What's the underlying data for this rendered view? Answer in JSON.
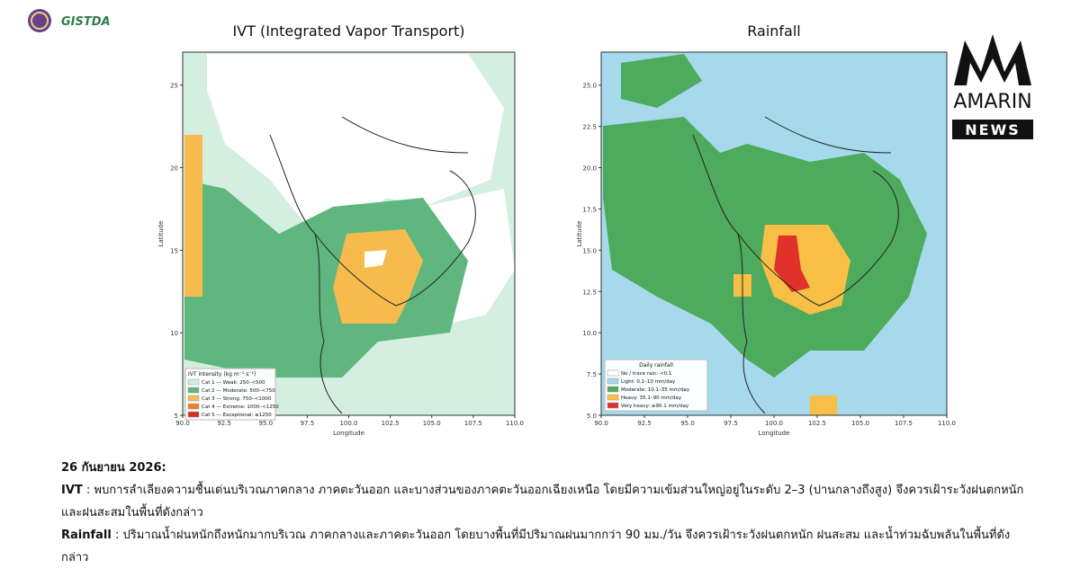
{
  "header": {
    "logo_text": "GISTDA"
  },
  "brand": {
    "name": "AMARIN",
    "tag": "NEWS"
  },
  "maps": [
    {
      "title": "IVT (Integrated Vapor Transport)",
      "xlabel": "Longitude",
      "ylabel": "Latitude",
      "xlim": [
        90,
        110
      ],
      "ylim": [
        5,
        27
      ],
      "xticks": [
        {
          "value": 90,
          "label": "90.0"
        },
        {
          "value": 92.5,
          "label": "92.5"
        },
        {
          "value": 95,
          "label": "95.0"
        },
        {
          "value": 97.5,
          "label": "97.5"
        },
        {
          "value": 100,
          "label": "100.0"
        },
        {
          "value": 102.5,
          "label": "102.5"
        },
        {
          "value": 105,
          "label": "105.0"
        },
        {
          "value": 107.5,
          "label": "107.5"
        },
        {
          "value": 110,
          "label": "110.0"
        }
      ],
      "yticks": [
        5,
        10,
        15,
        20,
        25
      ],
      "legend": {
        "title": "IVT intensity (kg m⁻¹ s⁻¹)",
        "items": [
          {
            "label": "Cat 1 — Weak: 250–<500",
            "color": "#cfeedc"
          },
          {
            "label": "Cat 2 — Moderate: 500–<750",
            "color": "#5fb77f"
          },
          {
            "label": "Cat 3 — Strong: 750–<1000",
            "color": "#f7bb4d"
          },
          {
            "label": "Cat 4 — Extreme: 1000–<1250",
            "color": "#ef7d2c"
          },
          {
            "label": "Cat 5 — Exceptional: ≥1250",
            "color": "#d7301f"
          }
        ]
      }
    },
    {
      "title": "Rainfall",
      "xlabel": "Longitude",
      "ylabel": "Latitude",
      "xlim": [
        90,
        110
      ],
      "ylim": [
        5,
        27
      ],
      "xticks": [
        {
          "value": 90,
          "label": "90.0"
        },
        {
          "value": 92.5,
          "label": "92.5"
        },
        {
          "value": 95,
          "label": "95.0"
        },
        {
          "value": 97.5,
          "label": "97.5"
        },
        {
          "value": 100,
          "label": "100.0"
        },
        {
          "value": 102.5,
          "label": "102.5"
        },
        {
          "value": 105,
          "label": "105.0"
        },
        {
          "value": 107.5,
          "label": "107.5"
        },
        {
          "value": 110,
          "label": "110.0"
        }
      ],
      "yticks": [
        {
          "value": 5,
          "label": "5.0"
        },
        {
          "value": 7.5,
          "label": "7.5"
        },
        {
          "value": 10,
          "label": "10.0"
        },
        {
          "value": 12.5,
          "label": "12.5"
        },
        {
          "value": 15,
          "label": "15.0"
        },
        {
          "value": 17.5,
          "label": "17.5"
        },
        {
          "value": 20,
          "label": "20.0"
        },
        {
          "value": 22.5,
          "label": "22.5"
        },
        {
          "value": 25,
          "label": "25.0"
        }
      ],
      "legend": {
        "title": "Daily rainfall",
        "items": [
          {
            "label": "No / trace rain: <0.1",
            "color": "#ffffff"
          },
          {
            "label": "Light: 0.1–10 mm/day",
            "color": "#a6d9ec"
          },
          {
            "label": "Moderate: 10.1–35 mm/day",
            "color": "#4eaa5c"
          },
          {
            "label": "Heavy: 35.1–90 mm/day",
            "color": "#f7bf45"
          },
          {
            "label": "Very heavy: ≥90.1 mm/day",
            "color": "#e0312a"
          }
        ]
      }
    }
  ],
  "text": {
    "date": "26 กันยายน 2026:",
    "paragraphs": [
      {
        "label": "IVT",
        "text": " : พบการลำเลียงความชื้นเด่นบริเวณภาคกลาง ภาคตะวันออก และบางส่วนของภาคตะวันออกเฉียงเหนือ โดยมีความเข้มส่วนใหญ่อยู่ในระดับ 2–3 (ปานกลางถึงสูง) จึงควรเฝ้าระวังฝนตกหนักและฝนสะสมในพื้นที่ดังกล่าว"
      },
      {
        "label": "Rainfall",
        "text": " : ปริมาณน้ำฝนหนักถึงหนักมากบริเวณ ภาคกลางและภาคตะวันออก โดยบางพื้นที่มีปริมาณฝนมากกว่า 90 มม./วัน จึงควรเฝ้าระวังฝนตกหนัก ฝนสะสม และน้ำท่วมฉับพลันในพื้นที่ดังกล่าว"
      }
    ]
  }
}
